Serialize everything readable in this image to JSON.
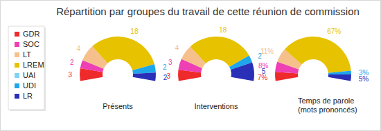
{
  "title": "Répartition par groupes du travail de cette réunion de commission",
  "chart_data": [
    {
      "type": "pie",
      "title": "Présents",
      "categories": [
        "GDR",
        "SOC",
        "LT",
        "LREM",
        "UAI",
        "UDI",
        "LR"
      ],
      "values": [
        3,
        2,
        4,
        18,
        0,
        2,
        2
      ],
      "colors": [
        "#ee2a2a",
        "#ee3fb4",
        "#f6c08c",
        "#e6c200",
        "#7fd3f2",
        "#1fa6ea",
        "#2a2fb8"
      ],
      "data_labels": true,
      "legend": "left"
    },
    {
      "type": "pie",
      "title": "Interventions",
      "categories": [
        "GDR",
        "SOC",
        "LT",
        "LREM",
        "UAI",
        "UDI",
        "LR"
      ],
      "values": [
        3,
        3,
        4,
        18,
        0,
        2,
        5
      ],
      "colors": [
        "#ee2a2a",
        "#ee3fb4",
        "#f6c08c",
        "#e6c200",
        "#7fd3f2",
        "#1fa6ea",
        "#2a2fb8"
      ],
      "data_labels": true
    },
    {
      "type": "pie",
      "title": "Temps de parole\n(mots prononcés)",
      "categories": [
        "GDR",
        "SOC",
        "LT",
        "LREM",
        "UAI",
        "UDI",
        "LR"
      ],
      "values": [
        7,
        8,
        11,
        67,
        0,
        3,
        5
      ],
      "value_labels": [
        "7%",
        "8%",
        "11%",
        "67%",
        null,
        "3%",
        "5%"
      ],
      "colors": [
        "#ee2a2a",
        "#ee3fb4",
        "#f6c08c",
        "#e6c200",
        "#7fd3f2",
        "#1fa6ea",
        "#2a2fb8"
      ],
      "data_labels": true
    }
  ]
}
